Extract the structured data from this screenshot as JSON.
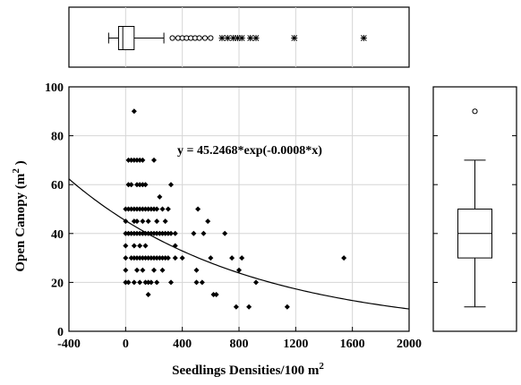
{
  "chart_data": [
    {
      "type": "scatter",
      "xlabel": "Seedlings Densities/100 m",
      "xlabel_superscript": "2",
      "ylabel": "Open Canopy (m",
      "ylabel_superscript": "2",
      "ylabel_suffix": " )",
      "xlim": [
        -400,
        2000
      ],
      "ylim": [
        0,
        100
      ],
      "xticks": [
        "-400",
        "0",
        "400",
        "800",
        "1200",
        "1600",
        "2000"
      ],
      "yticks": [
        "0",
        "20",
        "40",
        "60",
        "80",
        "100"
      ],
      "grid": true,
      "fit": {
        "equation": "y = 45.2468*exp(-0.0008*x)",
        "a": 45.2468,
        "b": -0.0008
      },
      "points": [
        [
          0,
          20
        ],
        [
          0,
          25
        ],
        [
          0,
          30
        ],
        [
          0,
          35
        ],
        [
          0,
          40
        ],
        [
          0,
          45
        ],
        [
          0,
          50
        ],
        [
          20,
          20
        ],
        [
          20,
          40
        ],
        [
          20,
          50
        ],
        [
          20,
          60
        ],
        [
          20,
          70
        ],
        [
          40,
          30
        ],
        [
          40,
          40
        ],
        [
          40,
          50
        ],
        [
          40,
          60
        ],
        [
          40,
          70
        ],
        [
          60,
          20
        ],
        [
          60,
          30
        ],
        [
          60,
          35
        ],
        [
          60,
          40
        ],
        [
          60,
          45
        ],
        [
          60,
          50
        ],
        [
          60,
          70
        ],
        [
          60,
          90
        ],
        [
          80,
          25
        ],
        [
          80,
          30
        ],
        [
          80,
          40
        ],
        [
          80,
          45
        ],
        [
          80,
          50
        ],
        [
          80,
          60
        ],
        [
          80,
          70
        ],
        [
          100,
          20
        ],
        [
          100,
          30
        ],
        [
          100,
          35
        ],
        [
          100,
          40
        ],
        [
          100,
          50
        ],
        [
          100,
          60
        ],
        [
          100,
          70
        ],
        [
          120,
          25
        ],
        [
          120,
          30
        ],
        [
          120,
          40
        ],
        [
          120,
          45
        ],
        [
          120,
          50
        ],
        [
          120,
          60
        ],
        [
          120,
          70
        ],
        [
          140,
          20
        ],
        [
          140,
          30
        ],
        [
          140,
          35
        ],
        [
          140,
          40
        ],
        [
          140,
          50
        ],
        [
          140,
          60
        ],
        [
          160,
          15
        ],
        [
          160,
          20
        ],
        [
          160,
          30
        ],
        [
          160,
          40
        ],
        [
          160,
          45
        ],
        [
          160,
          50
        ],
        [
          180,
          20
        ],
        [
          180,
          30
        ],
        [
          180,
          40
        ],
        [
          180,
          50
        ],
        [
          200,
          25
        ],
        [
          200,
          30
        ],
        [
          200,
          40
        ],
        [
          200,
          50
        ],
        [
          200,
          70
        ],
        [
          220,
          20
        ],
        [
          220,
          30
        ],
        [
          220,
          40
        ],
        [
          220,
          45
        ],
        [
          220,
          50
        ],
        [
          240,
          30
        ],
        [
          240,
          40
        ],
        [
          240,
          55
        ],
        [
          260,
          25
        ],
        [
          260,
          30
        ],
        [
          260,
          40
        ],
        [
          260,
          50
        ],
        [
          280,
          30
        ],
        [
          280,
          40
        ],
        [
          280,
          45
        ],
        [
          300,
          30
        ],
        [
          300,
          40
        ],
        [
          300,
          50
        ],
        [
          320,
          20
        ],
        [
          320,
          40
        ],
        [
          320,
          60
        ],
        [
          350,
          30
        ],
        [
          350,
          35
        ],
        [
          350,
          40
        ],
        [
          400,
          30
        ],
        [
          480,
          40
        ],
        [
          500,
          20
        ],
        [
          500,
          25
        ],
        [
          510,
          50
        ],
        [
          540,
          20
        ],
        [
          550,
          40
        ],
        [
          580,
          45
        ],
        [
          600,
          30
        ],
        [
          620,
          15
        ],
        [
          640,
          15
        ],
        [
          700,
          40
        ],
        [
          750,
          30
        ],
        [
          780,
          10
        ],
        [
          800,
          25
        ],
        [
          820,
          30
        ],
        [
          870,
          10
        ],
        [
          920,
          20
        ],
        [
          1140,
          10
        ],
        [
          1540,
          30
        ]
      ]
    },
    {
      "type": "boxplot",
      "orientation": "horizontal",
      "axis": "x",
      "min": -120,
      "q1": -50,
      "median": -20,
      "q3": 60,
      "max": 270,
      "outliers": [
        330,
        370,
        400,
        430,
        460,
        490,
        520,
        560,
        600
      ],
      "extremes": [
        680,
        720,
        760,
        790,
        820,
        880,
        920,
        1190,
        1680
      ]
    },
    {
      "type": "boxplot",
      "orientation": "vertical",
      "axis": "y",
      "min": 10,
      "q1": 30,
      "median": 40,
      "q3": 50,
      "max": 70,
      "outliers": [
        90
      ]
    }
  ]
}
